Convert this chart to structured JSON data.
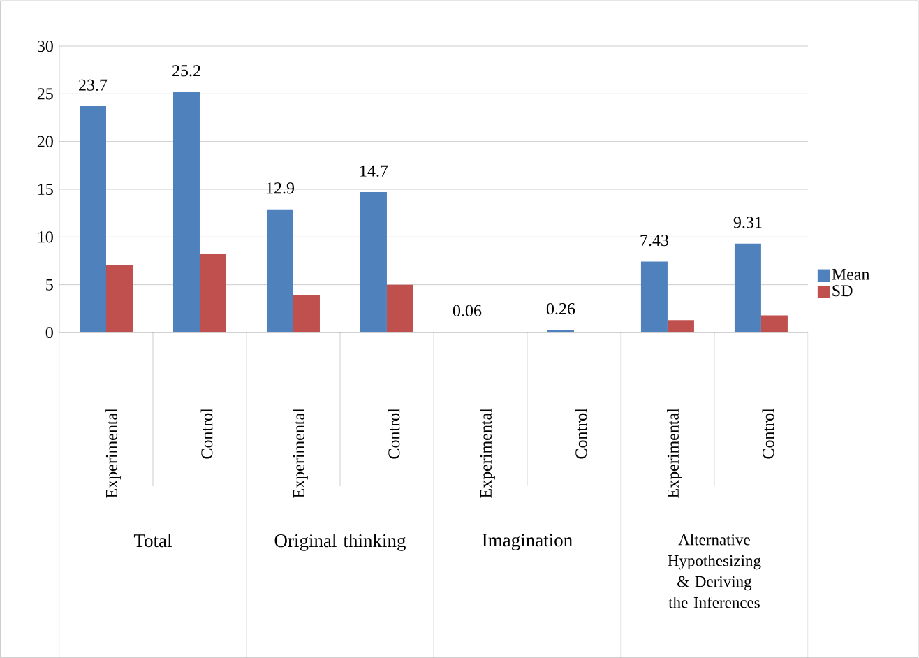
{
  "chart_data": {
    "type": "bar",
    "categories": [
      "Experimental",
      "Control",
      "Experimental",
      "Control",
      "Experimental",
      "Control",
      "Experimental",
      "Control"
    ],
    "series": [
      {
        "name": "Mean",
        "color": "#4f81bd",
        "values": [
          23.7,
          25.2,
          12.9,
          14.7,
          0.06,
          0.26,
          7.43,
          9.31
        ],
        "value_labels": [
          "23.7",
          "25.2",
          "12.9",
          "14.7",
          "0.06",
          "0.26",
          "7.43",
          "9.31"
        ]
      },
      {
        "name": "SD",
        "color": "#c0504d",
        "values": [
          7.1,
          8.2,
          3.9,
          5.0,
          0,
          0,
          1.3,
          1.8
        ]
      }
    ],
    "annotations": [
      "Total",
      "Original thinking",
      "Imagination",
      "Alternative Hypothesizing & Deriving the Inferences"
    ],
    "ylim": [
      0,
      30
    ],
    "yticks": [
      0,
      5,
      10,
      15,
      20,
      25,
      30
    ],
    "grid": "y",
    "legend": "right"
  }
}
